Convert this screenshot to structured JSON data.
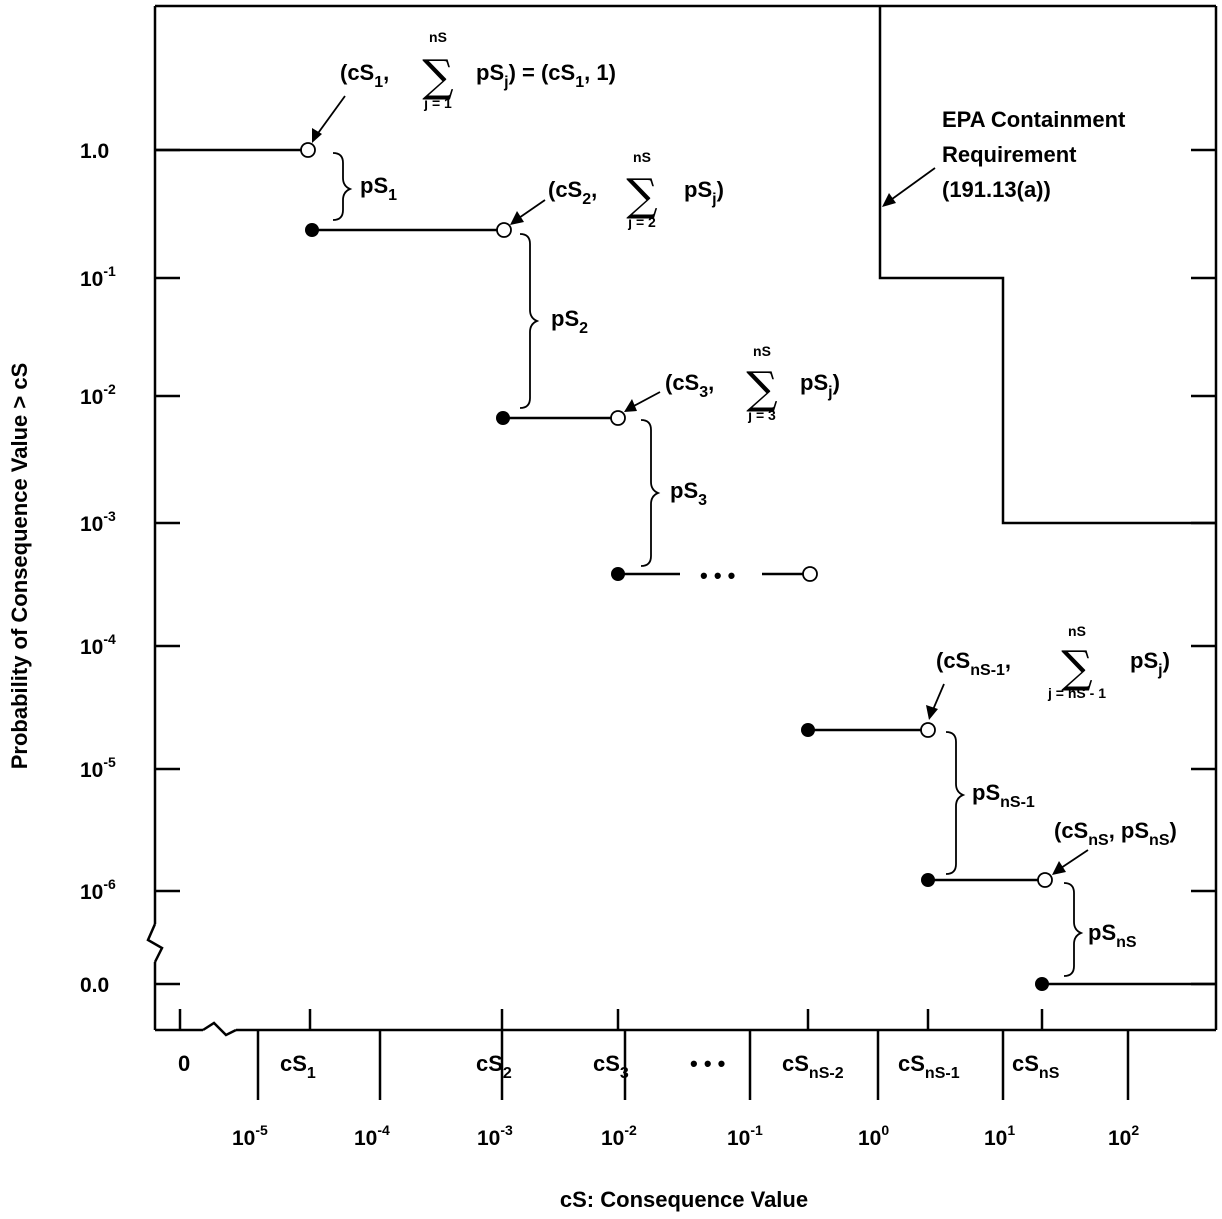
{
  "axes": {
    "ylabel": "Probability of Consequence Value > cS",
    "xlabel": "cS:  Consequence Value",
    "y_ticks": [
      {
        "base": "1.0",
        "exp": ""
      },
      {
        "base": "10",
        "exp": "-1"
      },
      {
        "base": "10",
        "exp": "-2"
      },
      {
        "base": "10",
        "exp": "-3"
      },
      {
        "base": "10",
        "exp": "-4"
      },
      {
        "base": "10",
        "exp": "-5"
      },
      {
        "base": "10",
        "exp": "-6"
      },
      {
        "base": "0.0",
        "exp": ""
      }
    ],
    "x_log_ticks": [
      {
        "base": "10",
        "exp": "-5"
      },
      {
        "base": "10",
        "exp": "-4"
      },
      {
        "base": "10",
        "exp": "-3"
      },
      {
        "base": "10",
        "exp": "-2"
      },
      {
        "base": "10",
        "exp": "-1"
      },
      {
        "base": "10",
        "exp": "0"
      },
      {
        "base": "10",
        "exp": "1"
      },
      {
        "base": "10",
        "exp": "2"
      }
    ],
    "x_zero": "0",
    "x_cs_labels": [
      {
        "base": "cS",
        "sub": "1"
      },
      {
        "base": "cS",
        "sub": "2"
      },
      {
        "base": "cS",
        "sub": "3"
      },
      {
        "base": "",
        "sub": ""
      },
      {
        "base": "cS",
        "sub": "nS-2"
      },
      {
        "base": "cS",
        "sub": "nS-1"
      },
      {
        "base": "cS",
        "sub": "nS"
      }
    ],
    "x_ellipsis": "• • •"
  },
  "epa": {
    "line1": "EPA Containment",
    "line2": "Requirement",
    "line3": "(191.13(a))"
  },
  "points": {
    "p1": {
      "open": "(cS",
      "sub": "1",
      "comma": ",",
      "lim_top": "nS",
      "lim_bottom": "j = 1",
      "term": "pS",
      "term_sub": "j",
      "close": ") = (cS",
      "sub2": "1",
      "end": ", 1)"
    },
    "p2": {
      "open": "(cS",
      "sub": "2",
      "comma": ",",
      "lim_top": "nS",
      "lim_bottom": "j = 2",
      "term": "pS",
      "term_sub": "j",
      "close": ")"
    },
    "p3": {
      "open": "(cS",
      "sub": "3",
      "comma": ",",
      "lim_top": "nS",
      "lim_bottom": "j = 3",
      "term": "pS",
      "term_sub": "j",
      "close": ")"
    },
    "pn1": {
      "open": "(cS",
      "sub": "nS-1",
      "comma": ",",
      "lim_top": "nS",
      "lim_bottom": "j = nS - 1",
      "term": "pS",
      "term_sub": "j",
      "close": ")"
    },
    "pn": {
      "open": "(cS",
      "sub": "nS",
      "comma": ", pS",
      "sub2": "nS",
      "close": ")"
    }
  },
  "sigma": "∑",
  "braces": [
    {
      "base": "pS",
      "sub": "1"
    },
    {
      "base": "pS",
      "sub": "2"
    },
    {
      "base": "pS",
      "sub": "3"
    },
    {
      "base": "pS",
      "sub": "nS-1"
    },
    {
      "base": "pS",
      "sub": "nS"
    }
  ],
  "middle_ellipsis": "• • •"
}
